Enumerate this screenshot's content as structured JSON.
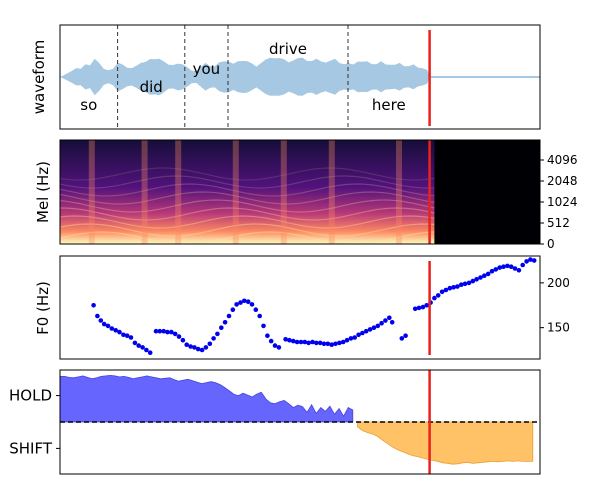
{
  "chart_data": [
    {
      "type": "area",
      "panel": "waveform",
      "ylabel": "waveform",
      "colors": {
        "waveform": "#a6c8e2",
        "cursor": "#e8221d",
        "boundary": "#333333"
      },
      "words": [
        {
          "text": "so",
          "start": 0.0,
          "end": 0.12
        },
        {
          "text": "did",
          "start": 0.12,
          "end": 0.26
        },
        {
          "text": "you",
          "start": 0.26,
          "end": 0.35
        },
        {
          "text": "drive",
          "start": 0.35,
          "end": 0.6
        },
        {
          "text": "here",
          "start": 0.6,
          "end": 0.77
        }
      ],
      "word_boundaries": [
        0.12,
        0.26,
        0.35,
        0.6
      ],
      "envelope": [
        0.02,
        0.05,
        0.08,
        0.12,
        0.15,
        0.22,
        0.18,
        0.35,
        0.25,
        0.12,
        0.08,
        0.15,
        0.25,
        0.2,
        0.18,
        0.15,
        0.18,
        0.22,
        0.28,
        0.32,
        0.3,
        0.35,
        0.28,
        0.2,
        0.18,
        0.25,
        0.22,
        0.15,
        0.12,
        0.1,
        0.16,
        0.22,
        0.2,
        0.18,
        0.24,
        0.3,
        0.28,
        0.22,
        0.25,
        0.3,
        0.28,
        0.22,
        0.2,
        0.25,
        0.3,
        0.32,
        0.35,
        0.34,
        0.3,
        0.28,
        0.3,
        0.33,
        0.32,
        0.3,
        0.28,
        0.31,
        0.3,
        0.26,
        0.28,
        0.3,
        0.26,
        0.22,
        0.22,
        0.24,
        0.28,
        0.26,
        0.25,
        0.24,
        0.22,
        0.26,
        0.24,
        0.22,
        0.2,
        0.22,
        0.2,
        0.18,
        0.2,
        0.18,
        0.15,
        0.1
      ],
      "cursor_time": 0.77
    },
    {
      "type": "heatmap",
      "panel": "mel",
      "ylabel": "Mel (Hz)",
      "yticks": [
        "0",
        "512",
        "1024",
        "2048",
        "4096"
      ],
      "colormap": "magma",
      "signal_end": 0.78,
      "cursor_time": 0.77
    },
    {
      "type": "scatter",
      "panel": "f0",
      "ylabel": "F0 (Hz)",
      "yticks": [
        150,
        200
      ],
      "ylim": [
        115,
        230
      ],
      "color": "#0000ee",
      "points": [
        [
          0.07,
          175
        ],
        [
          0.078,
          163
        ],
        [
          0.085,
          158
        ],
        [
          0.092,
          154
        ],
        [
          0.1,
          152
        ],
        [
          0.108,
          149
        ],
        [
          0.116,
          147
        ],
        [
          0.124,
          145
        ],
        [
          0.132,
          142
        ],
        [
          0.14,
          141
        ],
        [
          0.148,
          139
        ],
        [
          0.156,
          133
        ],
        [
          0.164,
          130
        ],
        [
          0.172,
          128
        ],
        [
          0.18,
          125
        ],
        [
          0.188,
          122
        ],
        [
          0.2,
          146
        ],
        [
          0.208,
          146
        ],
        [
          0.216,
          146
        ],
        [
          0.224,
          145
        ],
        [
          0.232,
          145
        ],
        [
          0.24,
          143
        ],
        [
          0.248,
          140
        ],
        [
          0.256,
          136
        ],
        [
          0.264,
          131
        ],
        [
          0.272,
          129
        ],
        [
          0.28,
          128
        ],
        [
          0.288,
          126
        ],
        [
          0.296,
          125
        ],
        [
          0.304,
          128
        ],
        [
          0.312,
          132
        ],
        [
          0.32,
          138
        ],
        [
          0.328,
          143
        ],
        [
          0.336,
          150
        ],
        [
          0.344,
          156
        ],
        [
          0.352,
          163
        ],
        [
          0.36,
          170
        ],
        [
          0.368,
          176
        ],
        [
          0.376,
          178
        ],
        [
          0.384,
          180
        ],
        [
          0.392,
          179
        ],
        [
          0.4,
          176
        ],
        [
          0.408,
          170
        ],
        [
          0.416,
          163
        ],
        [
          0.424,
          152
        ],
        [
          0.432,
          141
        ],
        [
          0.44,
          135
        ],
        [
          0.448,
          130
        ],
        [
          0.456,
          128
        ],
        [
          0.47,
          137
        ],
        [
          0.478,
          136
        ],
        [
          0.486,
          135
        ],
        [
          0.494,
          134
        ],
        [
          0.502,
          134
        ],
        [
          0.51,
          134
        ],
        [
          0.518,
          133
        ],
        [
          0.526,
          134
        ],
        [
          0.534,
          133
        ],
        [
          0.542,
          133
        ],
        [
          0.55,
          132
        ],
        [
          0.558,
          132
        ],
        [
          0.566,
          131
        ],
        [
          0.574,
          132
        ],
        [
          0.582,
          133
        ],
        [
          0.59,
          134
        ],
        [
          0.598,
          136
        ],
        [
          0.606,
          138
        ],
        [
          0.614,
          139
        ],
        [
          0.622,
          142
        ],
        [
          0.63,
          144
        ],
        [
          0.638,
          146
        ],
        [
          0.646,
          148
        ],
        [
          0.654,
          150
        ],
        [
          0.662,
          152
        ],
        [
          0.67,
          155
        ],
        [
          0.678,
          158
        ],
        [
          0.686,
          161
        ],
        [
          0.692,
          156
        ],
        [
          0.712,
          138
        ],
        [
          0.72,
          141
        ],
        [
          0.74,
          171
        ],
        [
          0.748,
          172
        ],
        [
          0.756,
          173
        ],
        [
          0.764,
          175
        ],
        [
          0.772,
          178
        ],
        [
          0.78,
          183
        ],
        [
          0.788,
          186
        ],
        [
          0.796,
          190
        ],
        [
          0.804,
          192
        ],
        [
          0.812,
          194
        ],
        [
          0.82,
          195
        ],
        [
          0.828,
          196
        ],
        [
          0.836,
          198
        ],
        [
          0.844,
          199
        ],
        [
          0.852,
          200
        ],
        [
          0.86,
          202
        ],
        [
          0.868,
          204
        ],
        [
          0.876,
          206
        ],
        [
          0.884,
          208
        ],
        [
          0.892,
          210
        ],
        [
          0.9,
          213
        ],
        [
          0.908,
          215
        ],
        [
          0.916,
          217
        ],
        [
          0.924,
          218
        ],
        [
          0.932,
          219
        ],
        [
          0.94,
          218
        ],
        [
          0.948,
          216
        ],
        [
          0.956,
          214
        ],
        [
          0.964,
          220
        ],
        [
          0.972,
          224
        ],
        [
          0.98,
          226
        ],
        [
          0.988,
          225
        ]
      ],
      "cursor_time": 0.77
    },
    {
      "type": "area",
      "panel": "turn",
      "categories": [
        "HOLD",
        "SHIFT"
      ],
      "ylim": [
        -1,
        1
      ],
      "hold_color": "#6666ff",
      "shift_color": "#ffc266",
      "threshold": 0,
      "hold_values": [
        0.95,
        0.95,
        0.93,
        0.92,
        0.94,
        0.96,
        0.93,
        0.9,
        0.92,
        0.95,
        0.96,
        0.97,
        0.96,
        0.94,
        0.95,
        0.93,
        0.9,
        0.92,
        0.94,
        0.96,
        0.94,
        0.92,
        0.9,
        0.91,
        0.92,
        0.88,
        0.85,
        0.87,
        0.89,
        0.86,
        0.83,
        0.8,
        0.82,
        0.84,
        0.82,
        0.78,
        0.72,
        0.65,
        0.58,
        0.55,
        0.6,
        0.56,
        0.52,
        0.58,
        0.62,
        0.48,
        0.4,
        0.38,
        0.42,
        0.45,
        0.38,
        0.3,
        0.35,
        0.32,
        0.2,
        0.36,
        0.18,
        0.3,
        0.22,
        0.33,
        0.16,
        0.28,
        0.12,
        0.3,
        0.25
      ],
      "shift_values": [
        -0.1,
        -0.18,
        -0.22,
        -0.25,
        -0.3,
        -0.38,
        -0.45,
        -0.52,
        -0.58,
        -0.62,
        -0.66,
        -0.7,
        -0.72,
        -0.75,
        -0.78,
        -0.8,
        -0.82,
        -0.85,
        -0.86,
        -0.88,
        -0.87,
        -0.85,
        -0.84,
        -0.86,
        -0.85,
        -0.84,
        -0.83,
        -0.82,
        -0.83,
        -0.82,
        -0.81,
        -0.82,
        -0.81,
        -0.82,
        -0.82,
        -0.82
      ],
      "cursor_time": 0.77
    }
  ]
}
